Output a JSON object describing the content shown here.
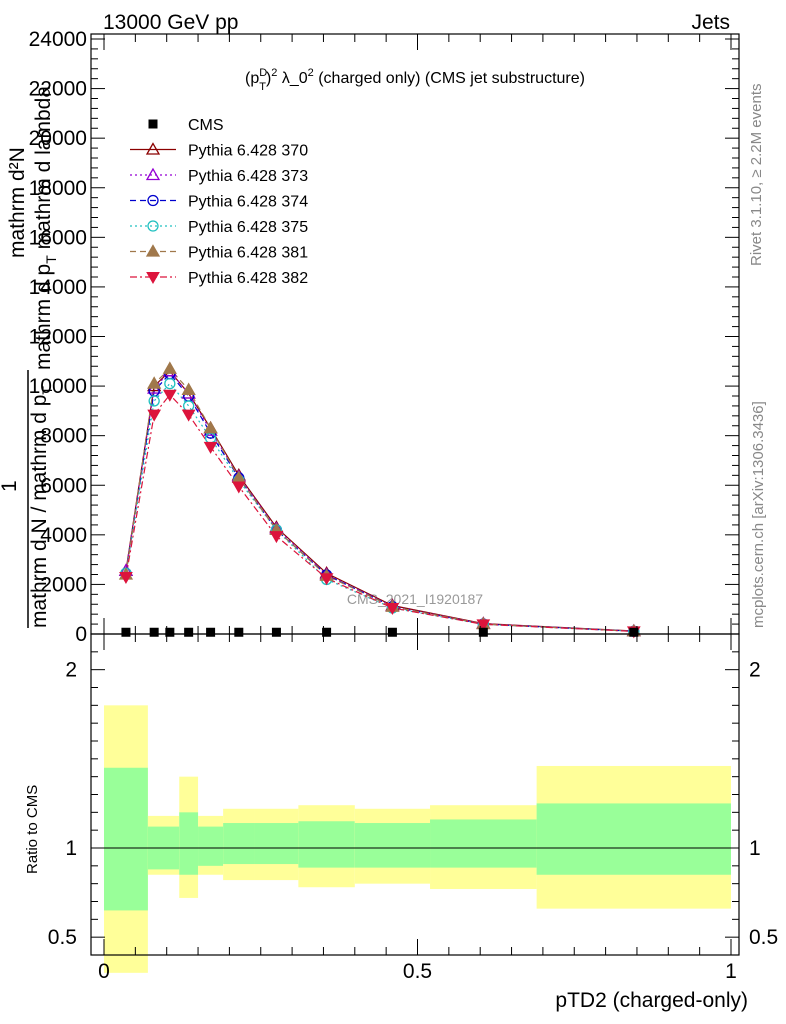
{
  "header": {
    "left": "13000 GeV pp",
    "right": "Jets"
  },
  "side": {
    "rivet": "Rivet 3.1.10, ≥ 2.2M events",
    "mcplots": "mcplots.cern.ch [arXiv:1306.3436]"
  },
  "watermark": "CMS_2021_I1920187",
  "plot_title": {
    "base1": "(p",
    "sup1": "D",
    "sub1": "T",
    "close": ")",
    "sup2": "2",
    "base2": " λ_0",
    "sup3": "2",
    "base3": " (charged only) (CMS jet substructure)"
  },
  "ylabel_main": {
    "numerator": "mathrm d²N",
    "denominator1": "mathrm d p",
    "denominator_sub": "T",
    "denominator2": " mathrm d lambda",
    "prefix_one": "1",
    "prefix_den": "mathrm d N / mathrm d p",
    "prefix_sub": "T"
  },
  "ylabel_ratio": "Ratio to CMS",
  "xlabel": "pTD2 (charged-only)",
  "colors": {
    "p370": "#8b0000",
    "p373": "#9400d3",
    "p374": "#0000cd",
    "p375": "#20c0c0",
    "p381": "#a0784b",
    "p382": "#dc143c",
    "band_inner": "#99ff99",
    "band_outer": "#ffff99"
  },
  "chart_data": {
    "type": "line",
    "xlim": [
      0,
      1
    ],
    "ylim_main": [
      0,
      24000
    ],
    "ylim_ratio": [
      0.4,
      2.2
    ],
    "x_ticks": [
      0,
      0.5,
      1
    ],
    "x_tick_labels": [
      "0",
      "0.5",
      "1"
    ],
    "y_ticks_main": [
      0,
      2000,
      4000,
      6000,
      8000,
      10000,
      12000,
      14000,
      16000,
      18000,
      20000,
      22000,
      24000
    ],
    "y_tick_labels_main": [
      "0",
      "2000",
      "4000",
      "6000",
      "8000",
      "10000",
      "12000",
      "14000",
      "16000",
      "18000",
      "20000",
      "22000",
      "24000"
    ],
    "y_ticks_ratio": [
      0.5,
      1,
      2
    ],
    "y_tick_labels_ratio": [
      "0.5",
      "1",
      "2"
    ],
    "x": [
      0.035,
      0.08,
      0.105,
      0.135,
      0.17,
      0.215,
      0.275,
      0.355,
      0.46,
      0.605,
      0.845
    ],
    "cms": [
      30,
      30,
      30,
      30,
      30,
      30,
      30,
      30,
      30,
      30,
      30
    ],
    "series": [
      {
        "name": "Pythia 6.428 370",
        "values": [
          2550,
          10000,
          10600,
          9700,
          8300,
          6400,
          4300,
          2450,
          1150,
          420,
          120
        ]
      },
      {
        "name": "Pythia 6.428 373",
        "values": [
          2550,
          9900,
          10600,
          9700,
          8200,
          6350,
          4250,
          2400,
          1120,
          410,
          115
        ]
      },
      {
        "name": "Pythia 6.428 374",
        "values": [
          2450,
          9800,
          10500,
          9600,
          8100,
          6300,
          4200,
          2380,
          1100,
          400,
          110
        ]
      },
      {
        "name": "Pythia 6.428 375",
        "values": [
          2450,
          9400,
          10100,
          9200,
          7900,
          6200,
          4200,
          2200,
          1050,
          390,
          110
        ]
      },
      {
        "name": "Pythia 6.428 381",
        "values": [
          2400,
          10100,
          10700,
          9850,
          8300,
          6300,
          4200,
          2350,
          1100,
          400,
          110
        ]
      },
      {
        "name": "Pythia 6.428 382",
        "values": [
          2300,
          8850,
          9650,
          8850,
          7550,
          5950,
          3950,
          2250,
          1050,
          390,
          105
        ]
      }
    ],
    "ratio_bands": [
      {
        "x0": 0.0,
        "x1": 0.07,
        "inner": [
          0.65,
          1.45
        ],
        "outer": [
          0.3,
          1.8
        ]
      },
      {
        "x0": 0.07,
        "x1": 0.12,
        "inner": [
          0.88,
          1.12
        ],
        "outer": [
          0.85,
          1.18
        ]
      },
      {
        "x0": 0.12,
        "x1": 0.15,
        "inner": [
          0.85,
          1.2
        ],
        "outer": [
          0.72,
          1.4
        ]
      },
      {
        "x0": 0.15,
        "x1": 0.19,
        "inner": [
          0.9,
          1.12
        ],
        "outer": [
          0.85,
          1.18
        ]
      },
      {
        "x0": 0.19,
        "x1": 0.24,
        "inner": [
          0.91,
          1.14
        ],
        "outer": [
          0.82,
          1.22
        ]
      },
      {
        "x0": 0.24,
        "x1": 0.31,
        "inner": [
          0.91,
          1.14
        ],
        "outer": [
          0.82,
          1.22
        ]
      },
      {
        "x0": 0.31,
        "x1": 0.4,
        "inner": [
          0.89,
          1.15
        ],
        "outer": [
          0.78,
          1.24
        ]
      },
      {
        "x0": 0.4,
        "x1": 0.52,
        "inner": [
          0.89,
          1.14
        ],
        "outer": [
          0.8,
          1.22
        ]
      },
      {
        "x0": 0.52,
        "x1": 0.69,
        "inner": [
          0.89,
          1.16
        ],
        "outer": [
          0.77,
          1.24
        ]
      },
      {
        "x0": 0.69,
        "x1": 1.0,
        "inner": [
          0.85,
          1.25
        ],
        "outer": [
          0.66,
          1.46
        ]
      }
    ]
  },
  "legend": [
    {
      "label": "CMS",
      "marker": "square-filled",
      "color": "#000000",
      "dash": "none"
    },
    {
      "label": "Pythia 6.428 370",
      "marker": "triangle-open",
      "color": "#8b0000",
      "dash": "solid"
    },
    {
      "label": "Pythia 6.428 373",
      "marker": "triangle-open",
      "color": "#9400d3",
      "dash": "dotted"
    },
    {
      "label": "Pythia 6.428 374",
      "marker": "circle-open",
      "color": "#0000cd",
      "dash": "dashed"
    },
    {
      "label": "Pythia 6.428 375",
      "marker": "circle-open",
      "color": "#20c0c0",
      "dash": "dotted"
    },
    {
      "label": "Pythia 6.428 381",
      "marker": "triangle-filled",
      "color": "#a0784b",
      "dash": "dashed"
    },
    {
      "label": "Pythia 6.428 382",
      "marker": "triangle-down-filled",
      "color": "#dc143c",
      "dash": "dashdot"
    }
  ]
}
